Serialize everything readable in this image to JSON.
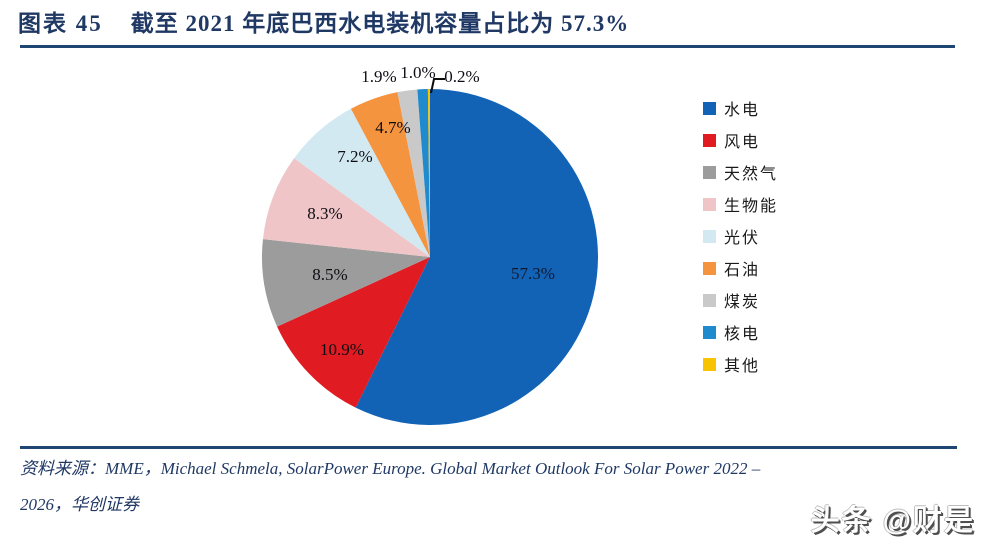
{
  "figure": {
    "label": "图表 45",
    "title": "截至 2021 年底巴西水电装机容量占比为 57.3%"
  },
  "chart_data": {
    "type": "pie",
    "title": "截至 2021 年底巴西水电装机容量占比为 57.3%",
    "start_angle_deg": 0,
    "direction": "clockwise",
    "legend_position": "right",
    "series": [
      {
        "name": "水电",
        "value": 57.3,
        "label": "57.3%",
        "color": "#1263B6"
      },
      {
        "name": "风电",
        "value": 10.9,
        "label": "10.9%",
        "color": "#E01B22"
      },
      {
        "name": "天然气",
        "value": 8.5,
        "label": "8.5%",
        "color": "#9C9C9C"
      },
      {
        "name": "生物能",
        "value": 8.3,
        "label": "8.3%",
        "color": "#EFC5C8"
      },
      {
        "name": "光伏",
        "value": 7.2,
        "label": "7.2%",
        "color": "#D3E9F2"
      },
      {
        "name": "石油",
        "value": 4.7,
        "label": "4.7%",
        "color": "#F5943F"
      },
      {
        "name": "煤炭",
        "value": 1.9,
        "label": "1.9%",
        "color": "#C9C9C9"
      },
      {
        "name": "核电",
        "value": 1.0,
        "label": "1.0%",
        "color": "#1F8ACE"
      },
      {
        "name": "其他",
        "value": 0.2,
        "label": "0.2%",
        "color": "#F8C301"
      }
    ]
  },
  "source": {
    "lines": [
      "资料来源：MME，Michael Schmela, SolarPower Europe. Global Market Outlook For Solar Power 2022 –",
      "2026，华创证券"
    ]
  },
  "watermark": {
    "text": "头条 @财是"
  },
  "colors": {
    "accent_navy_text": "#1F3864",
    "rule_navy": "#1F4573"
  }
}
